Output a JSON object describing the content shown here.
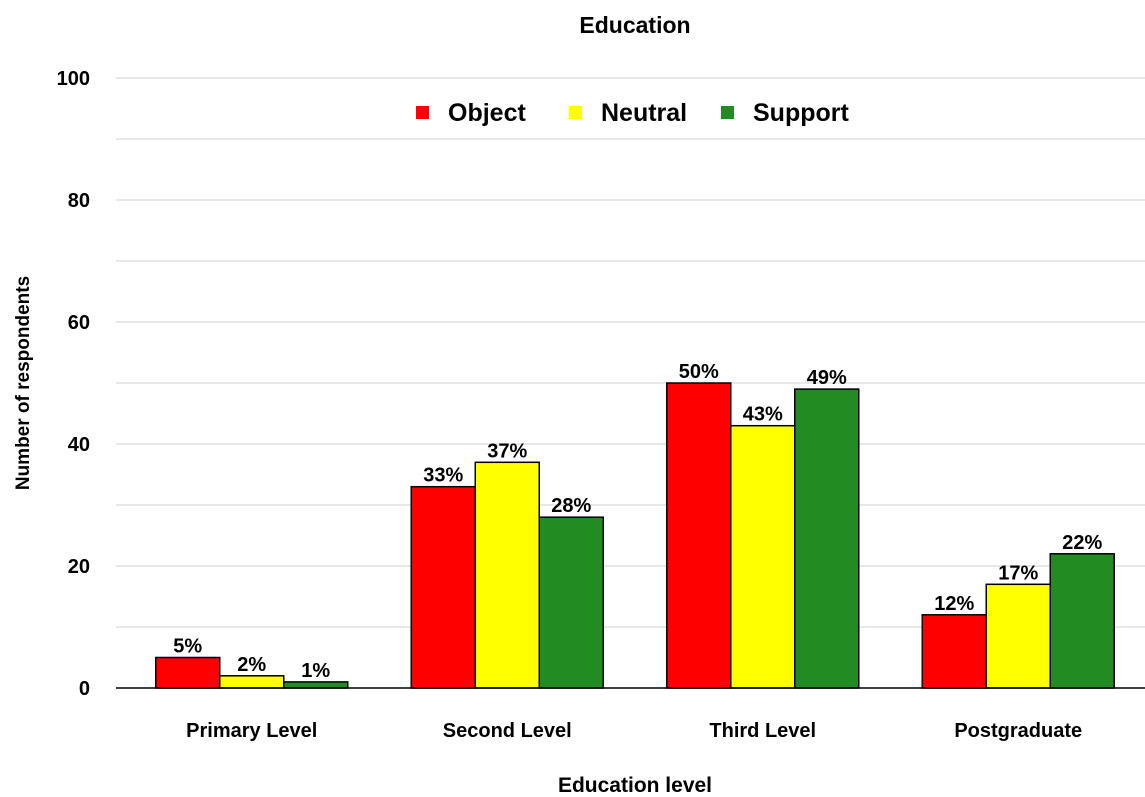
{
  "chart_data": {
    "type": "bar",
    "title": "Education",
    "xlabel": "Education level",
    "ylabel": "Number of respondents",
    "ylim": [
      0,
      100
    ],
    "yticks": [
      0,
      20,
      40,
      60,
      80,
      100
    ],
    "minor_gridlines": [
      10,
      30,
      50,
      70,
      90
    ],
    "grid": true,
    "legend_position": "top",
    "categories": [
      "Primary Level",
      "Second Level",
      "Third Level",
      "Postgraduate"
    ],
    "series": [
      {
        "name": "Object",
        "color": "#ff0000",
        "values": [
          5,
          33,
          50,
          12
        ],
        "labels": [
          "5%",
          "33%",
          "50%",
          "12%"
        ]
      },
      {
        "name": "Neutral",
        "color": "#ffff00",
        "values": [
          2,
          37,
          43,
          17
        ],
        "labels": [
          "2%",
          "37%",
          "43%",
          "17%"
        ]
      },
      {
        "name": "Support",
        "color": "#228b22",
        "values": [
          1,
          28,
          49,
          22
        ],
        "labels": [
          "1%",
          "28%",
          "49%",
          "22%"
        ]
      }
    ]
  }
}
